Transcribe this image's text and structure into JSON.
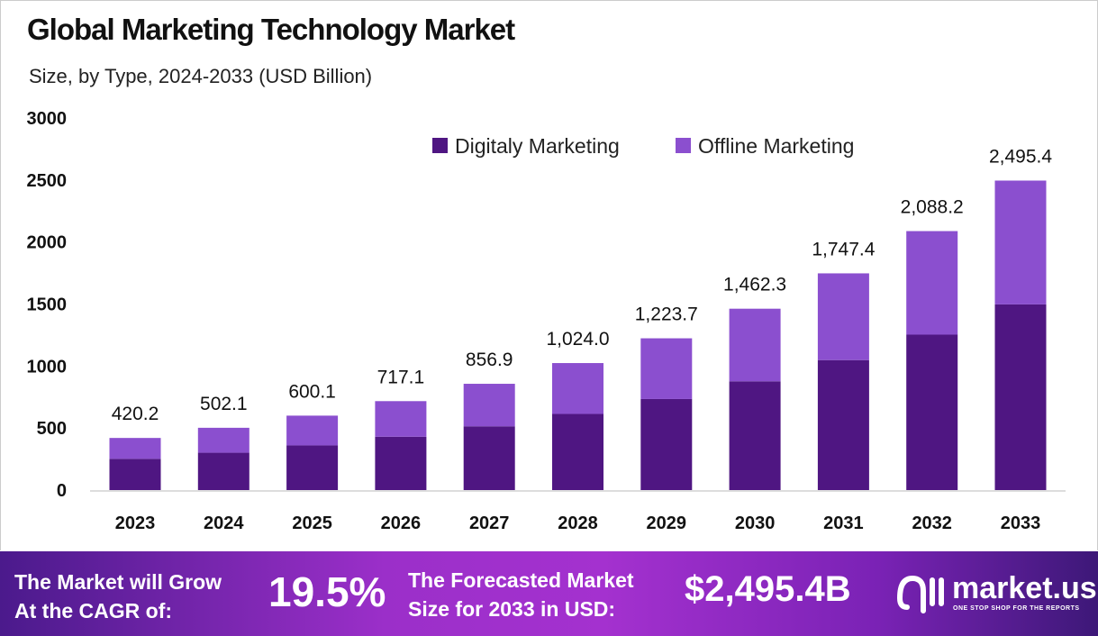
{
  "chart_data": {
    "type": "bar",
    "stacked": true,
    "title": "Global Marketing Technology Market",
    "subtitle": "Size, by Type, 2024-2033 (USD Billion)",
    "categories": [
      "2023",
      "2024",
      "2025",
      "2026",
      "2027",
      "2028",
      "2029",
      "2030",
      "2031",
      "2032",
      "2033"
    ],
    "series": [
      {
        "name": "Digitaly Marketing",
        "color": "#4f1682",
        "values": [
          252,
          301,
          360,
          430,
          514,
          614,
          734,
          877,
          1048,
          1253,
          1497
        ]
      },
      {
        "name": "Offline Marketing",
        "color": "#8b4fcf",
        "values": [
          168.2,
          201.1,
          240.1,
          287.1,
          342.9,
          410.0,
          489.7,
          585.3,
          699.4,
          835.2,
          998.4
        ]
      }
    ],
    "totals": [
      "420.2",
      "502.1",
      "600.1",
      "717.1",
      "856.9",
      "1,024.0",
      "1,223.7",
      "1,462.3",
      "1,747.4",
      "2,088.2",
      "2,495.4"
    ],
    "yticks": [
      "0",
      "500",
      "1000",
      "1500",
      "2000",
      "2500",
      "3000"
    ],
    "ylim": [
      0,
      3000
    ],
    "grid": false,
    "legend_position": "top-right"
  },
  "banner": {
    "cagr_label_1": "The Market will Grow",
    "cagr_label_2": "At the CAGR of:",
    "cagr_value": "19.5%",
    "forecast_label_1": "The Forecasted Market",
    "forecast_label_2": "Size for 2033 in USD:",
    "forecast_value": "$2,495.4B",
    "logo_name": "market.us",
    "logo_tagline": "ONE STOP SHOP FOR THE REPORTS"
  }
}
